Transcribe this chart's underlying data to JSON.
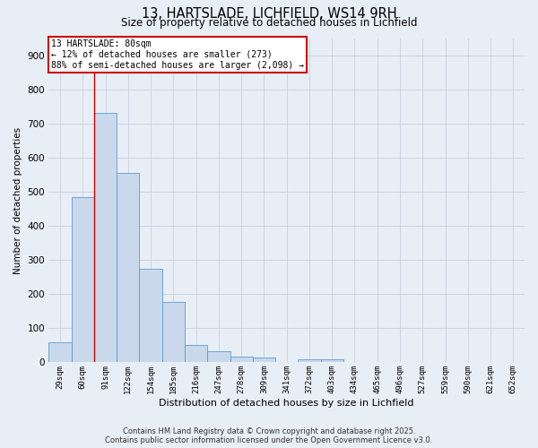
{
  "title": "13, HARTSLADE, LICHFIELD, WS14 9RH",
  "subtitle": "Size of property relative to detached houses in Lichfield",
  "xlabel": "Distribution of detached houses by size in Lichfield",
  "ylabel": "Number of detached properties",
  "categories": [
    "29sqm",
    "60sqm",
    "91sqm",
    "122sqm",
    "154sqm",
    "185sqm",
    "216sqm",
    "247sqm",
    "278sqm",
    "309sqm",
    "341sqm",
    "372sqm",
    "403sqm",
    "434sqm",
    "465sqm",
    "496sqm",
    "527sqm",
    "559sqm",
    "590sqm",
    "621sqm",
    "652sqm"
  ],
  "values": [
    60,
    485,
    730,
    555,
    275,
    178,
    50,
    32,
    18,
    13,
    0,
    8,
    8,
    0,
    0,
    0,
    0,
    0,
    0,
    0,
    0
  ],
  "bar_color": "#c9d9eb",
  "bar_edge_color": "#5b9bd5",
  "grid_color": "#c8d0dc",
  "background_color": "#e8eef6",
  "red_line_x": 1.5,
  "annotation_text": "13 HARTSLADE: 80sqm\n← 12% of detached houses are smaller (273)\n88% of semi-detached houses are larger (2,098) →",
  "annotation_box_color": "#ffffff",
  "annotation_box_edge": "#cc0000",
  "footer_line1": "Contains HM Land Registry data © Crown copyright and database right 2025.",
  "footer_line2": "Contains public sector information licensed under the Open Government Licence v3.0.",
  "ylim": [
    0,
    950
  ],
  "yticks": [
    0,
    100,
    200,
    300,
    400,
    500,
    600,
    700,
    800,
    900
  ]
}
